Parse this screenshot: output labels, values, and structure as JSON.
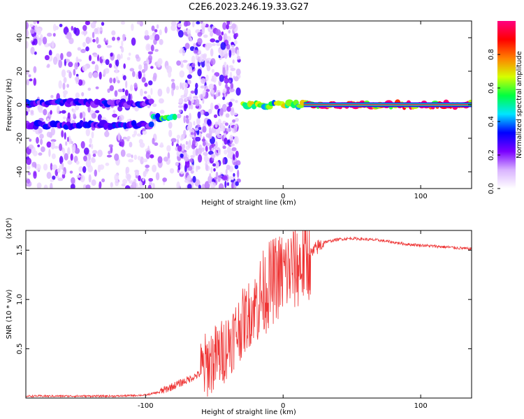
{
  "title": "C2E6.2023.246.19.33.G27",
  "chart_data": [
    {
      "type": "heatmap",
      "xlabel": "Height of straight line (km)",
      "ylabel": "Frequency (Hz)",
      "xlim": [
        -187,
        137
      ],
      "ylim": [
        -50,
        50
      ],
      "xticks": [
        -100,
        0,
        100
      ],
      "yticks": [
        -40,
        -20,
        0,
        20,
        40
      ],
      "colorbar": {
        "label": "Normalized spectral amplitude",
        "range": [
          0,
          1
        ],
        "ticks": [
          0.0,
          0.2,
          0.4,
          0.6,
          0.8
        ],
        "tick_labels": [
          "0.0",
          "0.2",
          "0.4",
          "0.6",
          "0.8"
        ],
        "colors": [
          "#ffffff",
          "#d9b3ff",
          "#7a00ff",
          "#0000ff",
          "#00e5ff",
          "#00ff40",
          "#d6ff00",
          "#ff8000",
          "#ff0000",
          "#ff0080"
        ]
      },
      "features": [
        {
          "x": [
            -187,
            -95
          ],
          "y": 1,
          "amplitude": 0.3
        },
        {
          "x": [
            -187,
            -95
          ],
          "y": -12,
          "amplitude": 0.3
        },
        {
          "x": [
            -95,
            -78
          ],
          "y": -8,
          "amplitude": 0.5
        },
        {
          "x": [
            -30,
            15
          ],
          "y": 0,
          "amplitude": 0.6
        },
        {
          "x": [
            15,
            137
          ],
          "y": 0,
          "amplitude": 0.95
        }
      ]
    },
    {
      "type": "line",
      "xlabel": "Height of straight line (km)",
      "ylabel": "SNR (10 * v/v)",
      "y_multiplier": "(x10⁴)",
      "xlim": [
        -187,
        137
      ],
      "ylim": [
        0,
        1.7
      ],
      "xticks": [
        -100,
        0,
        100
      ],
      "yticks": [
        0.5,
        1.0,
        1.5
      ],
      "ytick_labels": [
        "0.5",
        "1.0",
        "1.5"
      ],
      "color": "#ee3333",
      "points": [
        {
          "x": -187,
          "y": 0.02
        },
        {
          "x": -150,
          "y": 0.02
        },
        {
          "x": -120,
          "y": 0.02
        },
        {
          "x": -100,
          "y": 0.03
        },
        {
          "x": -90,
          "y": 0.06
        },
        {
          "x": -80,
          "y": 0.12
        },
        {
          "x": -70,
          "y": 0.18
        },
        {
          "x": -60,
          "y": 0.25
        },
        {
          "x": -55,
          "y": 0.35
        },
        {
          "x": -50,
          "y": 0.4
        },
        {
          "x": -45,
          "y": 0.45
        },
        {
          "x": -40,
          "y": 0.55
        },
        {
          "x": -35,
          "y": 0.65
        },
        {
          "x": -30,
          "y": 0.75
        },
        {
          "x": -25,
          "y": 0.85
        },
        {
          "x": -20,
          "y": 0.95
        },
        {
          "x": -15,
          "y": 1.05
        },
        {
          "x": -10,
          "y": 1.15
        },
        {
          "x": -5,
          "y": 1.22
        },
        {
          "x": 0,
          "y": 1.26
        },
        {
          "x": 5,
          "y": 1.3
        },
        {
          "x": 10,
          "y": 1.33
        },
        {
          "x": 15,
          "y": 1.38
        },
        {
          "x": 20,
          "y": 1.45
        },
        {
          "x": 25,
          "y": 1.53
        },
        {
          "x": 30,
          "y": 1.58
        },
        {
          "x": 40,
          "y": 1.61
        },
        {
          "x": 50,
          "y": 1.62
        },
        {
          "x": 60,
          "y": 1.61
        },
        {
          "x": 70,
          "y": 1.6
        },
        {
          "x": 80,
          "y": 1.58
        },
        {
          "x": 90,
          "y": 1.56
        },
        {
          "x": 100,
          "y": 1.55
        },
        {
          "x": 110,
          "y": 1.54
        },
        {
          "x": 120,
          "y": 1.53
        },
        {
          "x": 130,
          "y": 1.52
        },
        {
          "x": 137,
          "y": 1.51
        }
      ]
    }
  ]
}
